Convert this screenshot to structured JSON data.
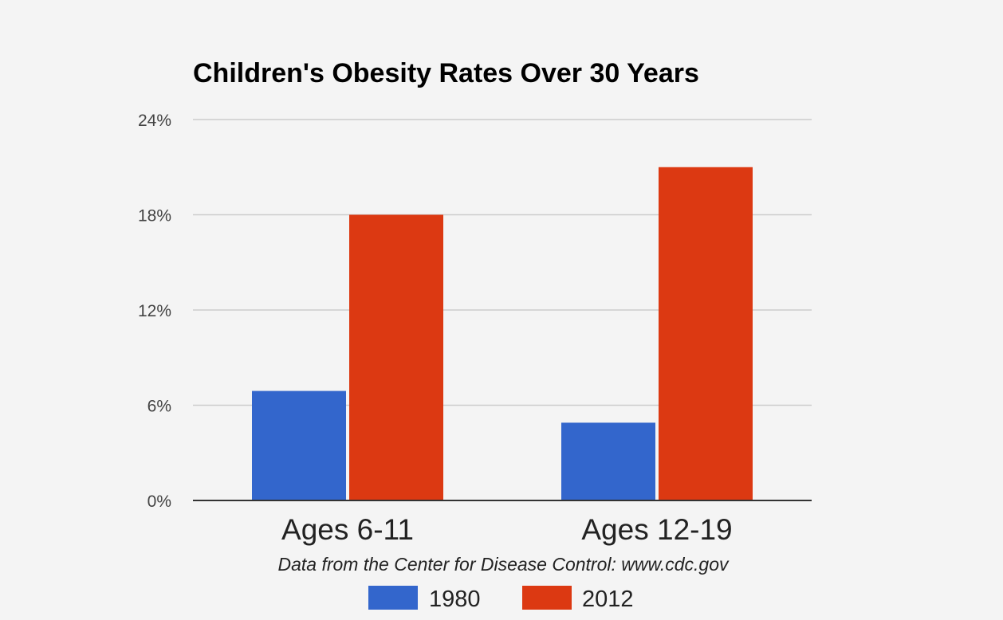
{
  "chart_data": {
    "type": "bar",
    "title": "Children's Obesity Rates Over 30 Years",
    "caption": "Data from the Center for Disease Control: www.cdc.gov",
    "categories": [
      "Ages 6-11",
      "Ages 12-19"
    ],
    "series": [
      {
        "name": "1980",
        "color": "#3366cc",
        "values": [
          6.9,
          4.9
        ]
      },
      {
        "name": "2012",
        "color": "#dc3912",
        "values": [
          18,
          21
        ]
      }
    ],
    "ylim": [
      0,
      24
    ],
    "yticks": [
      0,
      6,
      12,
      18,
      24
    ],
    "ytick_labels": [
      "0%",
      "6%",
      "12%",
      "18%",
      "24%"
    ],
    "xlabel": "",
    "ylabel": "",
    "grid": true,
    "legend": "bottom"
  }
}
